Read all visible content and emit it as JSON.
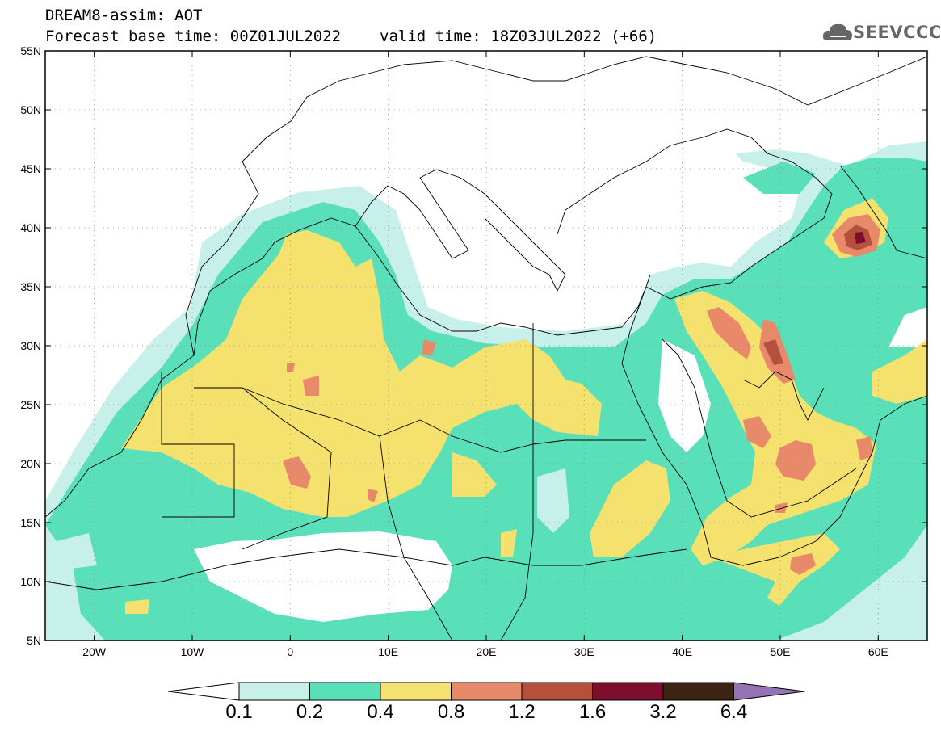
{
  "header": {
    "title": "DREAM8-assim: AOT",
    "base_time": "Forecast base time: 00Z01JUL2022",
    "valid_time": "valid time: 18Z03JUL2022 (+66)"
  },
  "logo": {
    "text": "SEEVCCC",
    "icon": "cloud-icon"
  },
  "chart_data": {
    "type": "heatmap",
    "variable": "AOT",
    "x_ticks": [
      "20W",
      "10W",
      "0",
      "10E",
      "20E",
      "30E",
      "40E",
      "50E",
      "60E"
    ],
    "x_tick_lon": [
      -20,
      -10,
      0,
      10,
      20,
      30,
      40,
      50,
      60
    ],
    "y_ticks": [
      "55N",
      "50N",
      "45N",
      "40N",
      "35N",
      "30N",
      "25N",
      "20N",
      "15N",
      "10N",
      "5N"
    ],
    "y_tick_lat": [
      55,
      50,
      45,
      40,
      35,
      30,
      25,
      20,
      15,
      10,
      5
    ],
    "lon_range": [
      -25,
      65
    ],
    "lat_range": [
      5,
      55
    ],
    "grid": "dotted",
    "colorbar": {
      "levels": [
        "0.1",
        "0.2",
        "0.4",
        "0.8",
        "1.2",
        "1.6",
        "3.2",
        "6.4"
      ],
      "colors": [
        "#ffffff",
        "#c8f0eb",
        "#5ae0b9",
        "#f5e16e",
        "#e8896a",
        "#b4503c",
        "#7d0f2d",
        "#3c2314",
        "#9673b4"
      ]
    }
  }
}
